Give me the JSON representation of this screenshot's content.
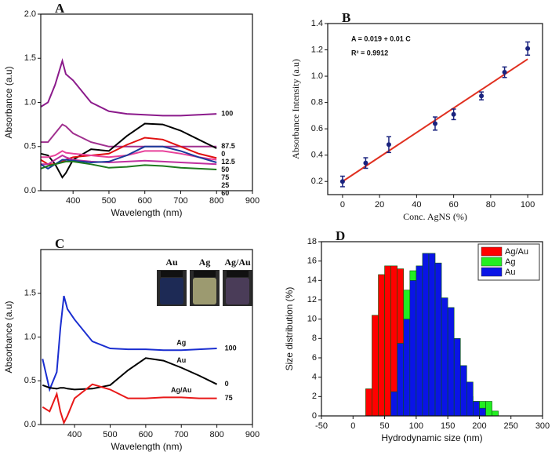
{
  "chart_data": [
    {
      "type": "line",
      "panel_label": "A",
      "x_label": "Wavelength (nm)",
      "y_label": "Absorbance (a.u)",
      "x": [
        310,
        330,
        350,
        370,
        380,
        400,
        450,
        500,
        550,
        600,
        650,
        700,
        750,
        800
      ],
      "xlim": [
        310,
        900
      ],
      "xticks": [
        400,
        500,
        600,
        700,
        800,
        900
      ],
      "ylim": [
        0,
        2
      ],
      "yticks": [
        {
          "value": 0,
          "label": "0.0"
        },
        0.5,
        {
          "value": 1,
          "label": "1.0"
        },
        1.5,
        {
          "value": 2,
          "label": "2.0"
        }
      ],
      "series": [
        {
          "name": "100",
          "color": "#8b1a8b",
          "values": [
            0.95,
            1.0,
            1.2,
            1.47,
            1.32,
            1.25,
            1.0,
            0.9,
            0.87,
            0.86,
            0.85,
            0.85,
            0.86,
            0.87
          ]
        },
        {
          "name": "87.5",
          "color": "#a0308f",
          "values": [
            0.55,
            0.55,
            0.65,
            0.75,
            0.73,
            0.65,
            0.55,
            0.5,
            0.5,
            0.5,
            0.5,
            0.5,
            0.5,
            0.5
          ]
        },
        {
          "name": "0",
          "color": "#000000",
          "values": [
            0.42,
            0.4,
            0.3,
            0.15,
            0.2,
            0.35,
            0.47,
            0.45,
            0.62,
            0.76,
            0.75,
            0.68,
            0.58,
            0.48
          ]
        },
        {
          "name": "12.5",
          "color": "#e01010",
          "values": [
            0.35,
            0.3,
            0.3,
            0.33,
            0.35,
            0.38,
            0.4,
            0.42,
            0.52,
            0.6,
            0.58,
            0.5,
            0.42,
            0.37
          ]
        },
        {
          "name": "50",
          "color": "#e8409a",
          "values": [
            0.38,
            0.38,
            0.4,
            0.45,
            0.43,
            0.42,
            0.4,
            0.38,
            0.4,
            0.45,
            0.45,
            0.42,
            0.38,
            0.35
          ]
        },
        {
          "name": "25",
          "color": "#c0309f",
          "values": [
            0.3,
            0.3,
            0.35,
            0.4,
            0.38,
            0.35,
            0.33,
            0.32,
            0.33,
            0.34,
            0.33,
            0.32,
            0.31,
            0.3
          ]
        },
        {
          "name": "75",
          "color": "#1a3a9a",
          "values": [
            0.3,
            0.25,
            0.3,
            0.35,
            0.35,
            0.34,
            0.32,
            0.33,
            0.4,
            0.5,
            0.5,
            0.45,
            0.38,
            0.32
          ]
        },
        {
          "name": "60",
          "color": "#1e7a1e",
          "values": [
            0.25,
            0.28,
            0.3,
            0.32,
            0.33,
            0.33,
            0.3,
            0.26,
            0.27,
            0.29,
            0.28,
            0.26,
            0.25,
            0.24
          ]
        }
      ]
    },
    {
      "type": "scatter",
      "panel_label": "B",
      "x_label": "Conc. AgNS (%)",
      "y_label": "Absorbance Intensity (a.u)",
      "annotations": [
        "A = 0.019 + 0.01 C",
        "R² = 0.9912"
      ],
      "x": [
        0,
        12.5,
        25,
        50,
        60,
        75,
        87.5,
        100
      ],
      "values": [
        0.2,
        0.34,
        0.48,
        0.64,
        0.71,
        0.85,
        1.03,
        1.21
      ],
      "errors": [
        0.04,
        0.04,
        0.06,
        0.05,
        0.04,
        0.03,
        0.04,
        0.05
      ],
      "color": "#1a237e",
      "fit": {
        "x": [
          0,
          100
        ],
        "values": [
          0.2,
          1.13
        ],
        "color": "#e03020"
      },
      "xlim": [
        -8,
        108
      ],
      "xticks": [
        0,
        20,
        40,
        60,
        80,
        100
      ],
      "ylim": [
        0.1,
        1.4
      ],
      "yticks": [
        0.2,
        0.4,
        0.6,
        0.8,
        {
          "value": 1,
          "label": "1.0"
        },
        1.2,
        1.4
      ]
    },
    {
      "type": "line",
      "panel_label": "C",
      "x_label": "Wavelength (nm)",
      "y_label": "Absorbance (a.u)",
      "inset_labels": [
        "Au",
        "Ag",
        "Ag/Au"
      ],
      "x": [
        310,
        330,
        350,
        360,
        370,
        380,
        400,
        450,
        500,
        550,
        600,
        650,
        700,
        750,
        800
      ],
      "xlim": [
        305,
        900
      ],
      "xticks": [
        400,
        500,
        600,
        700,
        800,
        900
      ],
      "ylim": [
        0,
        2
      ],
      "yticks": [
        {
          "value": 0,
          "label": "0.0"
        },
        0.5,
        {
          "value": 1,
          "label": "1.0"
        },
        1.5
      ],
      "series": [
        {
          "name": "Ag",
          "end_label": "100",
          "color": "#1a2ed0",
          "values": [
            0.75,
            0.4,
            0.6,
            1.1,
            1.47,
            1.32,
            1.2,
            0.95,
            0.87,
            0.86,
            0.86,
            0.85,
            0.85,
            0.86,
            0.87
          ]
        },
        {
          "name": "Au",
          "end_label": "0",
          "color": "#000000",
          "values": [
            0.45,
            0.42,
            0.41,
            0.42,
            0.42,
            0.41,
            0.4,
            0.41,
            0.45,
            0.62,
            0.76,
            0.73,
            0.65,
            0.56,
            0.46
          ]
        },
        {
          "name": "Ag/Au",
          "end_label": "75",
          "color": "#e81818",
          "values": [
            0.2,
            0.15,
            0.35,
            0.15,
            0.02,
            0.1,
            0.3,
            0.46,
            0.4,
            0.3,
            0.3,
            0.31,
            0.31,
            0.3,
            0.3
          ]
        }
      ]
    },
    {
      "type": "histogram",
      "panel_label": "D",
      "x_label": "Hydrodynamic size (nm)",
      "y_label": "Size distribution (%)",
      "xlim": [
        -50,
        300
      ],
      "xticks": [
        -50,
        0,
        50,
        100,
        150,
        200,
        250,
        300
      ],
      "ylim": [
        0,
        18
      ],
      "yticks": [
        0,
        2,
        4,
        6,
        8,
        10,
        12,
        14,
        16,
        18
      ],
      "legend": "upper right",
      "series": [
        {
          "name": "Ag/Au",
          "color": "#ff0000",
          "bins": [
            20,
            30,
            40,
            50,
            60,
            70,
            80,
            90,
            100
          ],
          "values": [
            2.8,
            10.4,
            14.6,
            15.5,
            15.5,
            15.2,
            7.5,
            2
          ]
        },
        {
          "name": "Ag",
          "color": "#22ee22",
          "bins": [
            40,
            50,
            60,
            70,
            80,
            90,
            100,
            110,
            120,
            130,
            140,
            150,
            160,
            170,
            180,
            190,
            200,
            210,
            220,
            230
          ],
          "values": [
            1,
            4,
            8,
            11,
            13,
            15,
            14,
            12,
            10,
            8,
            6,
            4.5,
            3,
            2,
            2,
            1.5,
            1.5,
            1.5,
            0.5
          ]
        },
        {
          "name": "Au",
          "color": "#0a14e6",
          "bins": [
            60,
            70,
            80,
            90,
            100,
            110,
            120,
            130,
            140,
            150,
            160,
            170,
            180,
            190,
            200,
            210
          ],
          "values": [
            2.5,
            7.5,
            10,
            14,
            15.5,
            16.8,
            16.8,
            15.8,
            12.2,
            11.2,
            8,
            5.2,
            3.5,
            1.5,
            0.8
          ]
        }
      ]
    }
  ]
}
